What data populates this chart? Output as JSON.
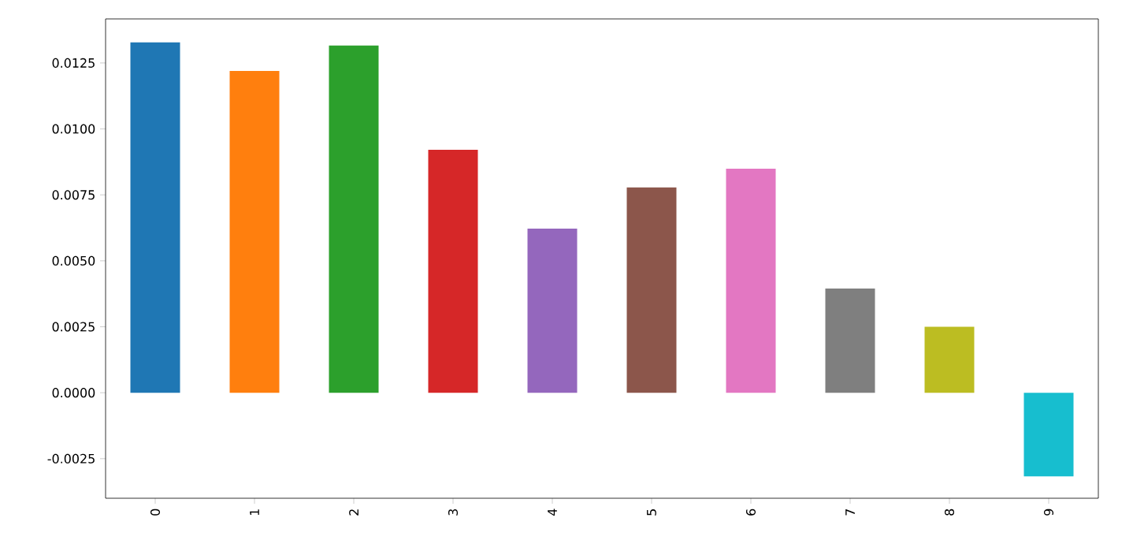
{
  "chart_data": {
    "type": "bar",
    "categories": [
      "0",
      "1",
      "2",
      "3",
      "4",
      "5",
      "6",
      "7",
      "8",
      "9"
    ],
    "values": [
      0.01328,
      0.0122,
      0.01316,
      0.00921,
      0.00622,
      0.00778,
      0.00849,
      0.00395,
      0.0025,
      -0.00317
    ],
    "colors": [
      "#1f77b4",
      "#ff7f0e",
      "#2ca02c",
      "#d62728",
      "#9467bd",
      "#8c564b",
      "#e377c2",
      "#7f7f7f",
      "#bcbd22",
      "#17becf"
    ],
    "ylim": [
      -0.004,
      0.01417
    ],
    "yticks": [
      {
        "value": -0.0025,
        "label": "-0.0025"
      },
      {
        "value": 0,
        "label": "0.0000"
      },
      {
        "value": 0.0025,
        "label": "0.0025"
      },
      {
        "value": 0.005,
        "label": "0.0050"
      },
      {
        "value": 0.0075,
        "label": "0.0075"
      },
      {
        "value": 0.01,
        "label": "0.0100"
      },
      {
        "value": 0.0125,
        "label": "0.0125"
      }
    ],
    "grid": false
  }
}
